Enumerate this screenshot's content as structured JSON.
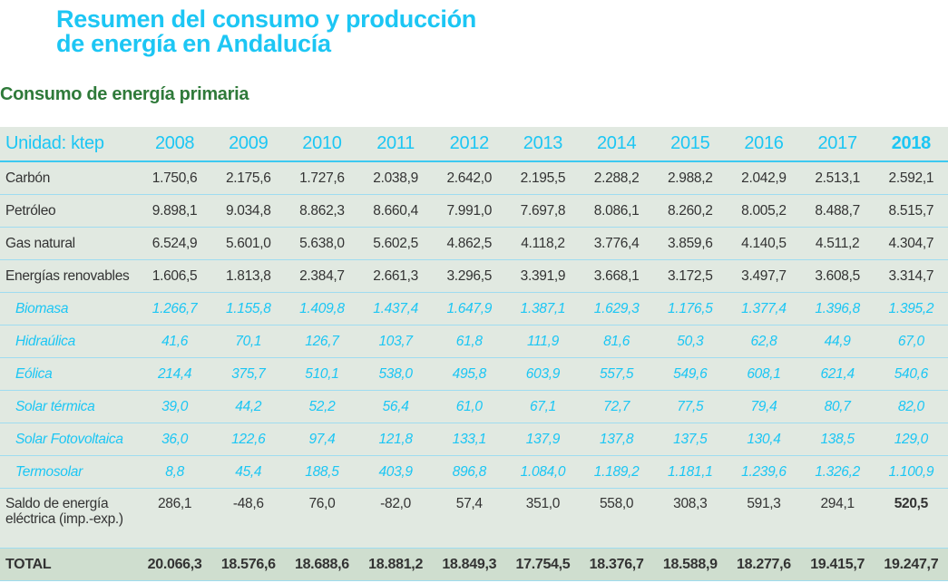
{
  "title_line1": "Resumen del consumo y producción",
  "title_line2": "de energía en Andalucía",
  "subtitle": "Consumo de energía primaria",
  "colors": {
    "title": "#1cc6f4",
    "subtitle": "#2f7a3a",
    "table_bg": "#e1e9e1",
    "total_bg": "#cfdecf"
  },
  "table": {
    "unit_label": "Unidad: ktep",
    "years": [
      "2008",
      "2009",
      "2010",
      "2011",
      "2012",
      "2013",
      "2014",
      "2015",
      "2016",
      "2017",
      "2018"
    ],
    "rows": [
      {
        "label": "Carbón",
        "type": "main",
        "values": [
          "1.750,6",
          "2.175,6",
          "1.727,6",
          "2.038,9",
          "2.642,0",
          "2.195,5",
          "2.288,2",
          "2.988,2",
          "2.042,9",
          "2.513,1",
          "2.592,1"
        ]
      },
      {
        "label": "Petróleo",
        "type": "main",
        "values": [
          "9.898,1",
          "9.034,8",
          "8.862,3",
          "8.660,4",
          "7.991,0",
          "7.697,8",
          "8.086,1",
          "8.260,2",
          "8.005,2",
          "8.488,7",
          "8.515,7"
        ]
      },
      {
        "label": "Gas natural",
        "type": "main",
        "values": [
          "6.524,9",
          "5.601,0",
          "5.638,0",
          "5.602,5",
          "4.862,5",
          "4.118,2",
          "3.776,4",
          "3.859,6",
          "4.140,5",
          "4.511,2",
          "4.304,7"
        ]
      },
      {
        "label": "Energías renovables",
        "type": "main",
        "values": [
          "1.606,5",
          "1.813,8",
          "2.384,7",
          "2.661,3",
          "3.296,5",
          "3.391,9",
          "3.668,1",
          "3.172,5",
          "3.497,7",
          "3.608,5",
          "3.314,7"
        ]
      },
      {
        "label": "Biomasa",
        "type": "sub",
        "values": [
          "1.266,7",
          "1.155,8",
          "1.409,8",
          "1.437,4",
          "1.647,9",
          "1.387,1",
          "1.629,3",
          "1.176,5",
          "1.377,4",
          "1.396,8",
          "1.395,2"
        ]
      },
      {
        "label": "Hidraúlica",
        "type": "sub",
        "values": [
          "41,6",
          "70,1",
          "126,7",
          "103,7",
          "61,8",
          "111,9",
          "81,6",
          "50,3",
          "62,8",
          "44,9",
          "67,0"
        ]
      },
      {
        "label": "Eólica",
        "type": "sub",
        "values": [
          "214,4",
          "375,7",
          "510,1",
          "538,0",
          "495,8",
          "603,9",
          "557,5",
          "549,6",
          "608,1",
          "621,4",
          "540,6"
        ]
      },
      {
        "label": "Solar térmica",
        "type": "sub",
        "values": [
          "39,0",
          "44,2",
          "52,2",
          "56,4",
          "61,0",
          "67,1",
          "72,7",
          "77,5",
          "79,4",
          "80,7",
          "82,0"
        ]
      },
      {
        "label": "Solar Fotovoltaica",
        "type": "sub",
        "values": [
          "36,0",
          "122,6",
          "97,4",
          "121,8",
          "133,1",
          "137,9",
          "137,8",
          "137,5",
          "130,4",
          "138,5",
          "129,0"
        ]
      },
      {
        "label": "Termosolar",
        "type": "sub",
        "values": [
          "8,8",
          "45,4",
          "188,5",
          "403,9",
          "896,8",
          "1.084,0",
          "1.189,2",
          "1.181,1",
          "1.239,6",
          "1.326,2",
          "1.100,9"
        ]
      }
    ],
    "saldo": {
      "label_line1": "Saldo de energía",
      "label_line2": "eléctrica (imp.-exp.)",
      "values": [
        "286,1",
        "-48,6",
        "76,0",
        "-82,0",
        "57,4",
        "351,0",
        "558,0",
        "308,3",
        "591,3",
        "294,1",
        "520,5"
      ]
    },
    "total": {
      "label": "TOTAL",
      "values": [
        "20.066,3",
        "18.576,6",
        "18.688,6",
        "18.881,2",
        "18.849,3",
        "17.754,5",
        "18.376,7",
        "18.588,9",
        "18.277,6",
        "19.415,7",
        "19.247,7"
      ]
    }
  }
}
